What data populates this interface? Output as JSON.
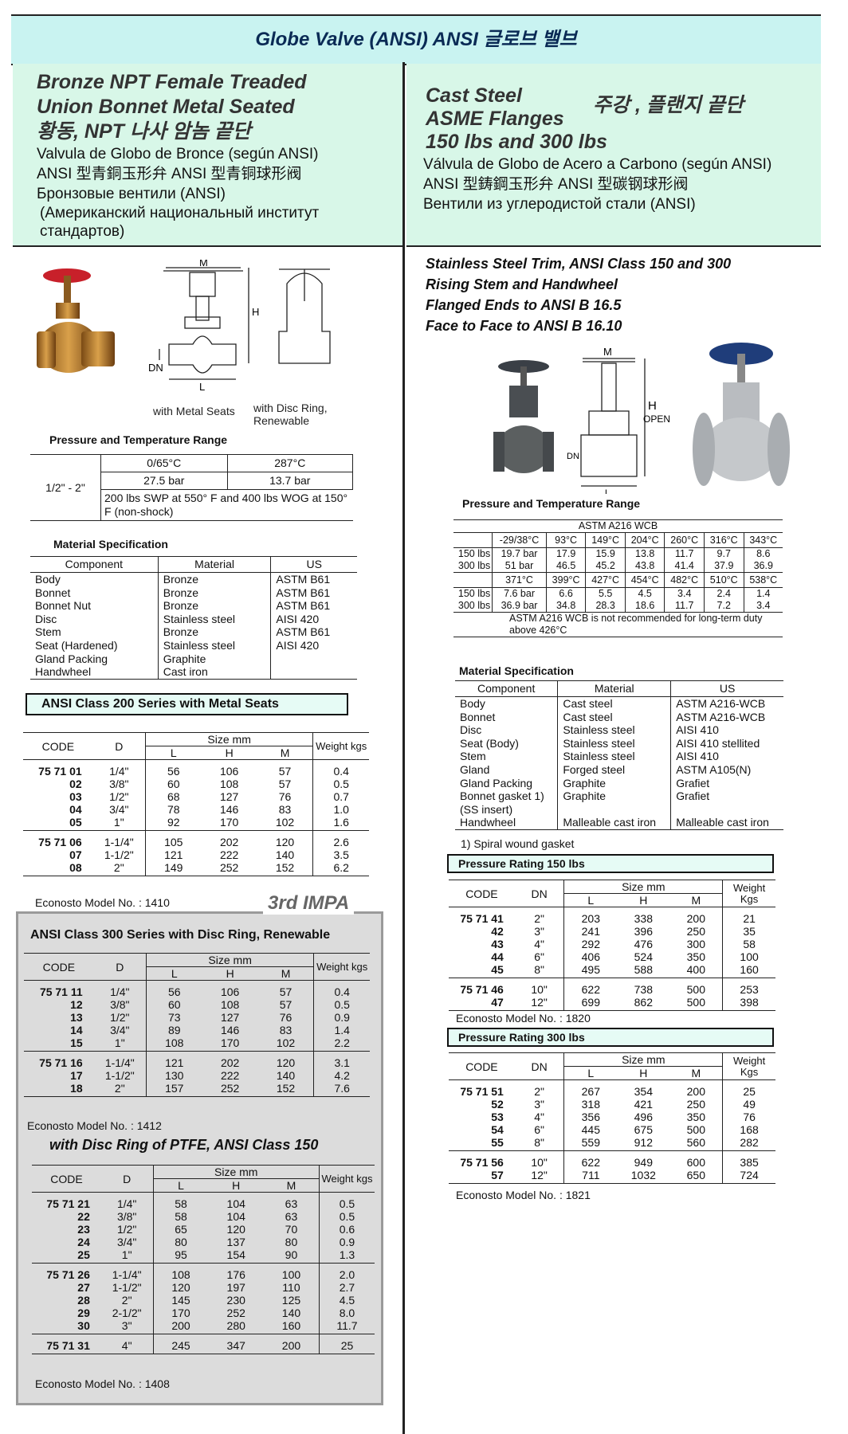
{
  "header": {
    "title": "Globe Valve (ANSI)  ANSI 글로브 밸브"
  },
  "left_header": {
    "lines": [
      "Bronze  NPT Female Treaded",
      "Union Bonnet Metal Seated",
      "황동, NPT 나사 암놈 끝단",
      "Valvula de Globo de Bronce (según ANSI)",
      "ANSI 型青銅玉形弁   ANSI 型青铜球形阀",
      "Бронзовые вентили (ANSI)",
      "(Американский национальный институт стандартов)"
    ]
  },
  "right_header": {
    "lines": [
      "Cast Steel",
      "ASME Flanges",
      "150 lbs and 300 lbs"
    ],
    "korean": "주강 , 플랜지 끝단",
    "other_lines": [
      "Válvula de Globo de Acero a Carbono (según ANSI)",
      "ANSI 型鋳鋼玉形弁    ANSI 型碳钢球形阀",
      "Вентили из углеродистой стали (ANSI)"
    ]
  },
  "left": {
    "figure": {
      "dim_m": "M",
      "dim_h": "H",
      "dim_dn": "DN",
      "dim_l": "L",
      "caption_1": "with Metal Seats",
      "caption_2": "with Disc Ring, Renewable"
    },
    "pressure": {
      "title": "Pressure and Temperature Range",
      "size": "1/2\" - 2\"",
      "temps": [
        "0/65°C",
        "287°C"
      ],
      "pressures": [
        "27.5 bar",
        "13.7 bar"
      ],
      "note": "200 lbs SWP at 550° F and 400 lbs WOG at 150° F (non-shock)"
    },
    "material": {
      "title": "Material Specification",
      "headers": [
        "Component",
        "Material",
        "US"
      ],
      "rows": [
        [
          "Body",
          "Bronze",
          "ASTM B61"
        ],
        [
          "Bonnet",
          "Bronze",
          "ASTM B61"
        ],
        [
          "Bonnet Nut",
          "Bronze",
          "ASTM B61"
        ],
        [
          "Disc",
          "Stainless steel",
          "AISI 420"
        ],
        [
          "Stem",
          "Bronze",
          "ASTM B61"
        ],
        [
          "Seat (Hardened)",
          "Stainless steel",
          "AISI 420"
        ],
        [
          "Gland Packing",
          "Graphite"
        ],
        [
          "Handwheel",
          "Cast iron"
        ]
      ]
    },
    "class200": {
      "title": "ANSI Class 200 Series with Metal Seats",
      "headers": {
        "code": "CODE",
        "d": "D",
        "size": "Size mm",
        "cols": [
          "L",
          "H",
          "M"
        ],
        "weight": "Weight kgs"
      },
      "groups": [
        [
          [
            "75 71 01",
            "1/4\"",
            "56",
            "106",
            "57",
            "0.4"
          ],
          [
            "02",
            "3/8\"",
            "60",
            "108",
            "57",
            "0.5"
          ],
          [
            "03",
            "1/2\"",
            "68",
            "127",
            "76",
            "0.7"
          ],
          [
            "04",
            "3/4\"",
            "78",
            "146",
            "83",
            "1.0"
          ],
          [
            "05",
            "1\"",
            "92",
            "170",
            "102",
            "1.6"
          ]
        ],
        [
          [
            "75 71 06",
            "1-1/4\"",
            "105",
            "202",
            "120",
            "2.6"
          ],
          [
            "07",
            "1-1/2\"",
            "121",
            "222",
            "140",
            "3.5"
          ],
          [
            "08",
            "2\"",
            "149",
            "252",
            "152",
            "6.2"
          ]
        ]
      ],
      "model": "Econosto Model No. : 1410"
    },
    "stamp": "3rd IMPA",
    "class300": {
      "title": "ANSI Class 300 Series with Disc Ring, Renewable",
      "headers": {
        "code": "CODE",
        "d": "D",
        "size": "Size mm",
        "cols": [
          "L",
          "H",
          "M"
        ],
        "weight": "Weight kgs"
      },
      "groups": [
        [
          [
            "75 71 11",
            "1/4\"",
            "56",
            "106",
            "57",
            "0.4"
          ],
          [
            "12",
            "3/8\"",
            "60",
            "108",
            "57",
            "0.5"
          ],
          [
            "13",
            "1/2\"",
            "73",
            "127",
            "76",
            "0.9"
          ],
          [
            "14",
            "3/4\"",
            "89",
            "146",
            "83",
            "1.4"
          ],
          [
            "15",
            "1\"",
            "108",
            "170",
            "102",
            "2.2"
          ]
        ],
        [
          [
            "75 71 16",
            "1-1/4\"",
            "121",
            "202",
            "120",
            "3.1"
          ],
          [
            "17",
            "1-1/2\"",
            "130",
            "222",
            "140",
            "4.2"
          ],
          [
            "18",
            "2\"",
            "157",
            "252",
            "152",
            "7.6"
          ]
        ]
      ],
      "model": "Econosto Model No. : 1412"
    },
    "ptfe": {
      "title": "with Disc Ring of PTFE, ANSI Class 150",
      "headers": {
        "code": "CODE",
        "d": "D",
        "size": "Size mm",
        "cols": [
          "L",
          "H",
          "M"
        ],
        "weight": "Weight kgs"
      },
      "groups": [
        [
          [
            "75 71 21",
            "1/4\"",
            "58",
            "104",
            "63",
            "0.5"
          ],
          [
            "22",
            "3/8\"",
            "58",
            "104",
            "63",
            "0.5"
          ],
          [
            "23",
            "1/2\"",
            "65",
            "120",
            "70",
            "0.6"
          ],
          [
            "24",
            "3/4\"",
            "80",
            "137",
            "80",
            "0.9"
          ],
          [
            "25",
            "1\"",
            "95",
            "154",
            "90",
            "1.3"
          ]
        ],
        [
          [
            "75 71 26",
            "1-1/4\"",
            "108",
            "176",
            "100",
            "2.0"
          ],
          [
            "27",
            "1-1/2\"",
            "120",
            "197",
            "110",
            "2.7"
          ],
          [
            "28",
            "2\"",
            "145",
            "230",
            "125",
            "4.5"
          ],
          [
            "29",
            "2-1/2\"",
            "170",
            "252",
            "140",
            "8.0"
          ],
          [
            "30",
            "3\"",
            "200",
            "280",
            "160",
            "11.7"
          ]
        ],
        [
          [
            "75 71 31",
            "4\"",
            "245",
            "347",
            "200",
            "25"
          ]
        ]
      ],
      "model": "Econosto Model No. : 1408"
    }
  },
  "right": {
    "spec_lines": [
      "Stainless Steel Trim, ANSI Class 150 and 300",
      "Rising Stem and Handwheel",
      "Flanged Ends to ANSI B 16.5",
      "Face to Face to ANSI B 16.10"
    ],
    "figure": {
      "dim_m": "M",
      "dim_h": "H",
      "open": "OPEN",
      "dim_dn": "DN",
      "dim_l": "L"
    },
    "pressure": {
      "title": "Pressure and Temperature Range",
      "material": "ASTM A216 WCB",
      "blocks": [
        {
          "temps": [
            "-29/38°C",
            "93°C",
            "149°C",
            "204°C",
            "260°C",
            "316°C",
            "343°C"
          ],
          "rows": [
            {
              "label": "150 lbs",
              "values": [
                "19.7 bar",
                "17.9",
                "15.9",
                "13.8",
                "11.7",
                "9.7",
                "8.6"
              ]
            },
            {
              "label": "300 lbs",
              "values": [
                "51 bar",
                "46.5",
                "45.2",
                "43.8",
                "41.4",
                "37.9",
                "36.9"
              ]
            }
          ]
        },
        {
          "temps": [
            "371°C",
            "399°C",
            "427°C",
            "454°C",
            "482°C",
            "510°C",
            "538°C"
          ],
          "rows": [
            {
              "label": "150 lbs",
              "values": [
                "7.6 bar",
                "6.6",
                "5.5",
                "4.5",
                "3.4",
                "2.4",
                "1.4"
              ]
            },
            {
              "label": "300 lbs",
              "values": [
                "36.9 bar",
                "34.8",
                "28.3",
                "18.6",
                "11.7",
                "7.2",
                "3.4"
              ]
            }
          ]
        }
      ],
      "note": "ASTM A216 WCB is not recommended for long-term duty above 426°C"
    },
    "material": {
      "title": "Material Specification",
      "headers": [
        "Component",
        "Material",
        "US"
      ],
      "rows": [
        [
          "Body",
          "Cast steel",
          "ASTM A216-WCB"
        ],
        [
          "Bonnet",
          "Cast steel",
          "ASTM A216-WCB"
        ],
        [
          "Disc",
          "Stainless steel",
          "AISI 410"
        ],
        [
          "Seat (Body)",
          "Stainless steel",
          "AISI 410 stellited"
        ],
        [
          "Stem",
          "Stainless steel",
          "AISI 410"
        ],
        [
          "Gland",
          "Forged steel",
          "ASTM A105(N)"
        ],
        [
          "Gland Packing",
          "Graphite",
          "Grafiet"
        ],
        [
          "Bonnet gasket 1)",
          "Graphite",
          "Grafiet"
        ],
        [
          "(SS insert)"
        ],
        [
          "Handwheel",
          "Malleable cast iron",
          "Malleable cast iron"
        ]
      ],
      "footnote": "1)  Spiral wound gasket"
    },
    "rating150": {
      "title": "Pressure Rating 150 lbs",
      "headers": {
        "code": "CODE",
        "d": "DN",
        "size": "Size mm",
        "cols": [
          "L",
          "H",
          "M"
        ],
        "weight": "Weight Kgs"
      },
      "groups": [
        [
          [
            "75 71 41",
            "2\"",
            "203",
            "338",
            "200",
            "21"
          ],
          [
            "42",
            "3\"",
            "241",
            "396",
            "250",
            "35"
          ],
          [
            "43",
            "4\"",
            "292",
            "476",
            "300",
            "58"
          ],
          [
            "44",
            "6\"",
            "406",
            "524",
            "350",
            "100"
          ],
          [
            "45",
            "8\"",
            "495",
            "588",
            "400",
            "160"
          ]
        ],
        [
          [
            "75 71 46",
            "10\"",
            "622",
            "738",
            "500",
            "253"
          ],
          [
            "47",
            "12\"",
            "699",
            "862",
            "500",
            "398"
          ]
        ]
      ],
      "model": "Econosto Model No. : 1820"
    },
    "rating300": {
      "title": "Pressure Rating 300 lbs",
      "headers": {
        "code": "CODE",
        "d": "DN",
        "size": "Size mm",
        "cols": [
          "L",
          "H",
          "M"
        ],
        "weight": "Weight Kgs"
      },
      "groups": [
        [
          [
            "75 71 51",
            "2\"",
            "267",
            "354",
            "200",
            "25"
          ],
          [
            "52",
            "3\"",
            "318",
            "421",
            "250",
            "49"
          ],
          [
            "53",
            "4\"",
            "356",
            "496",
            "350",
            "76"
          ],
          [
            "54",
            "6\"",
            "445",
            "675",
            "500",
            "168"
          ],
          [
            "55",
            "8\"",
            "559",
            "912",
            "560",
            "282"
          ]
        ],
        [
          [
            "75 71 56",
            "10\"",
            "622",
            "949",
            "600",
            "385"
          ],
          [
            "57",
            "12\"",
            "711",
            "1032",
            "650",
            "724"
          ]
        ]
      ],
      "model": "Econosto Model No. : 1821"
    }
  }
}
